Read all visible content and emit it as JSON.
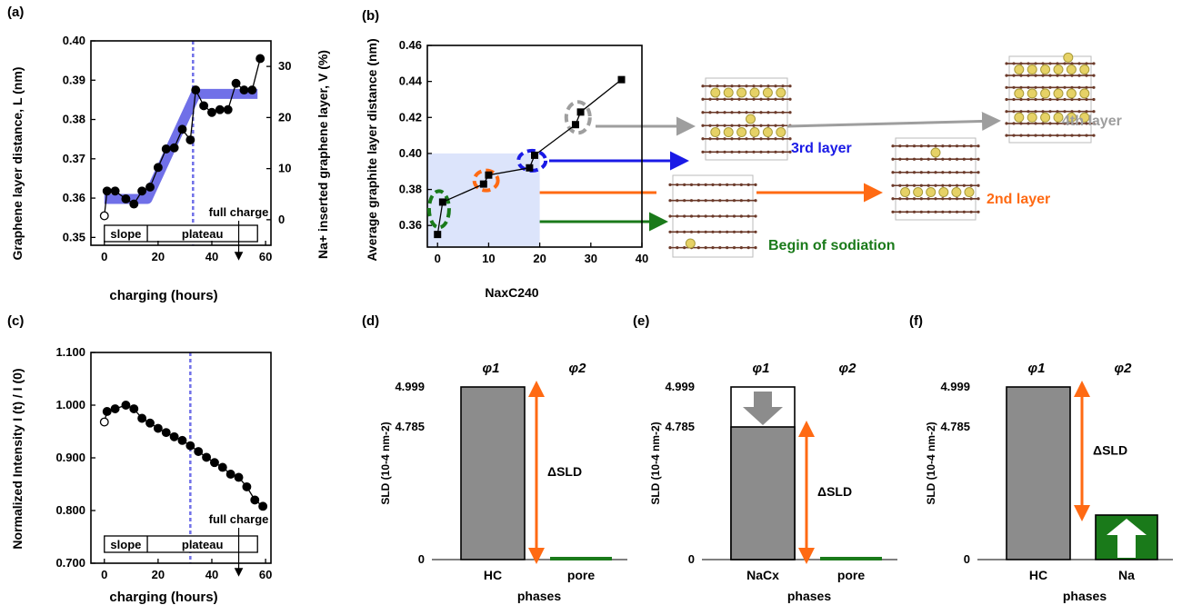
{
  "panels": {
    "a": "(a)",
    "b": "(b)",
    "c": "(c)",
    "d": "(d)",
    "e": "(e)",
    "f": "(f)"
  },
  "colors": {
    "blue": "#1a1ae6",
    "orange": "#ff6a13",
    "green": "#1a7a1a",
    "gray": "#9e9e9e",
    "band": "#7070e8",
    "shade": "#dce4fb",
    "bar": "#8c8c8c",
    "barGreen": "#1a7a1a"
  },
  "chart_data": [
    {
      "id": "a",
      "type": "line",
      "xlabel": "charging (hours)",
      "ylabel": "Graphene layer distance, L (nm)",
      "y2label": "Na+ inserted graphene layer, V (%)",
      "xlim": [
        -5,
        62
      ],
      "ylim": [
        0.348,
        0.4
      ],
      "y2lim": [
        -5,
        35
      ],
      "xticks": [
        0,
        20,
        40,
        60
      ],
      "yticks": [
        "0.35",
        "0.36",
        "0.37",
        "0.38",
        "0.39",
        "0.40"
      ],
      "y2ticks": [
        "0",
        "10",
        "20",
        "30"
      ],
      "x": [
        0,
        1,
        4,
        8,
        11,
        14,
        17,
        20,
        23,
        26,
        29,
        32,
        34,
        37,
        40,
        43,
        46,
        49,
        52,
        55,
        58
      ],
      "y": [
        0.3555,
        0.3618,
        0.3618,
        0.3598,
        0.3585,
        0.3618,
        0.3628,
        0.3678,
        0.3725,
        0.3728,
        0.3775,
        0.3748,
        0.3875,
        0.3835,
        0.3818,
        0.3825,
        0.3825,
        0.3892,
        0.3875,
        0.3875,
        0.3955
      ],
      "band_x": [
        0,
        16,
        34,
        57
      ],
      "band_y": [
        0.3598,
        0.3598,
        0.3865,
        0.3865
      ],
      "vline_x": 33,
      "annotation": "full charge",
      "phases": [
        "slope",
        "plateau"
      ]
    },
    {
      "id": "b",
      "type": "scatter",
      "xlabel": "NaxC240",
      "ylabel": "Average graphite layer distance (nm)",
      "xlim": [
        -2,
        40
      ],
      "ylim": [
        0.348,
        0.46
      ],
      "xticks": [
        0,
        10,
        20,
        30,
        40
      ],
      "yticks": [
        "0.36",
        "0.38",
        "0.40",
        "0.42",
        "0.44",
        "0.46"
      ],
      "x": [
        0,
        1,
        9,
        10,
        18,
        19,
        27,
        28,
        36
      ],
      "y": [
        0.355,
        0.373,
        0.383,
        0.388,
        0.392,
        0.399,
        0.416,
        0.423,
        0.441
      ],
      "shade_xlim": [
        -2,
        20
      ],
      "shade_ylim": [
        0.348,
        0.4
      ],
      "labels": {
        "l3": "3rd layer",
        "l2": "2nd layer",
        "l4": "4th layer",
        "begin": "Begin of sodiation"
      }
    },
    {
      "id": "c",
      "type": "line",
      "xlabel": "charging (hours)",
      "ylabel": "Normalized Intensity I (t) / I (0)",
      "xlim": [
        -5,
        62
      ],
      "ylim": [
        0.7,
        1.1
      ],
      "xticks": [
        0,
        20,
        40,
        60
      ],
      "yticks": [
        "0.700",
        "0.800",
        "0.900",
        "1.000",
        "1.100"
      ],
      "x": [
        0,
        1,
        4,
        8,
        11,
        14,
        17,
        20,
        23,
        26,
        29,
        32,
        35,
        38,
        41,
        44,
        47,
        50,
        53,
        56,
        59
      ],
      "y": [
        0.968,
        0.988,
        0.993,
        1.0,
        0.993,
        0.975,
        0.966,
        0.956,
        0.948,
        0.94,
        0.933,
        0.923,
        0.912,
        0.901,
        0.891,
        0.882,
        0.869,
        0.863,
        0.845,
        0.82,
        0.808
      ],
      "vline_x": 32,
      "annotation": "full charge",
      "phases": [
        "slope",
        "plateau"
      ]
    },
    {
      "id": "d",
      "type": "bar",
      "xlabel": "phases",
      "ylabel": "SLD (10-4 nm-2)",
      "categories": [
        "HC",
        "pore"
      ],
      "values": [
        4.999,
        0
      ],
      "yticks": [
        "0",
        "4.785",
        "4.999"
      ],
      "phis": [
        "φ1",
        "φ2"
      ],
      "delta": "ΔSLD"
    },
    {
      "id": "e",
      "type": "bar",
      "xlabel": "phases",
      "ylabel": "SLD (10-4 nm-2)",
      "categories": [
        "NaCx",
        "pore"
      ],
      "values": [
        4.785,
        0
      ],
      "yticks": [
        "0",
        "4.785",
        "4.999"
      ],
      "phis": [
        "φ1",
        "φ2"
      ],
      "delta": "ΔSLD"
    },
    {
      "id": "f",
      "type": "bar",
      "xlabel": "phases",
      "ylabel": "SLD (10-4 nm-2)",
      "categories": [
        "HC",
        "Na"
      ],
      "values": [
        4.999,
        1.25
      ],
      "yticks": [
        "0",
        "4.785",
        "4.999"
      ],
      "phis": [
        "φ1",
        "φ2"
      ],
      "delta": "ΔSLD"
    }
  ]
}
